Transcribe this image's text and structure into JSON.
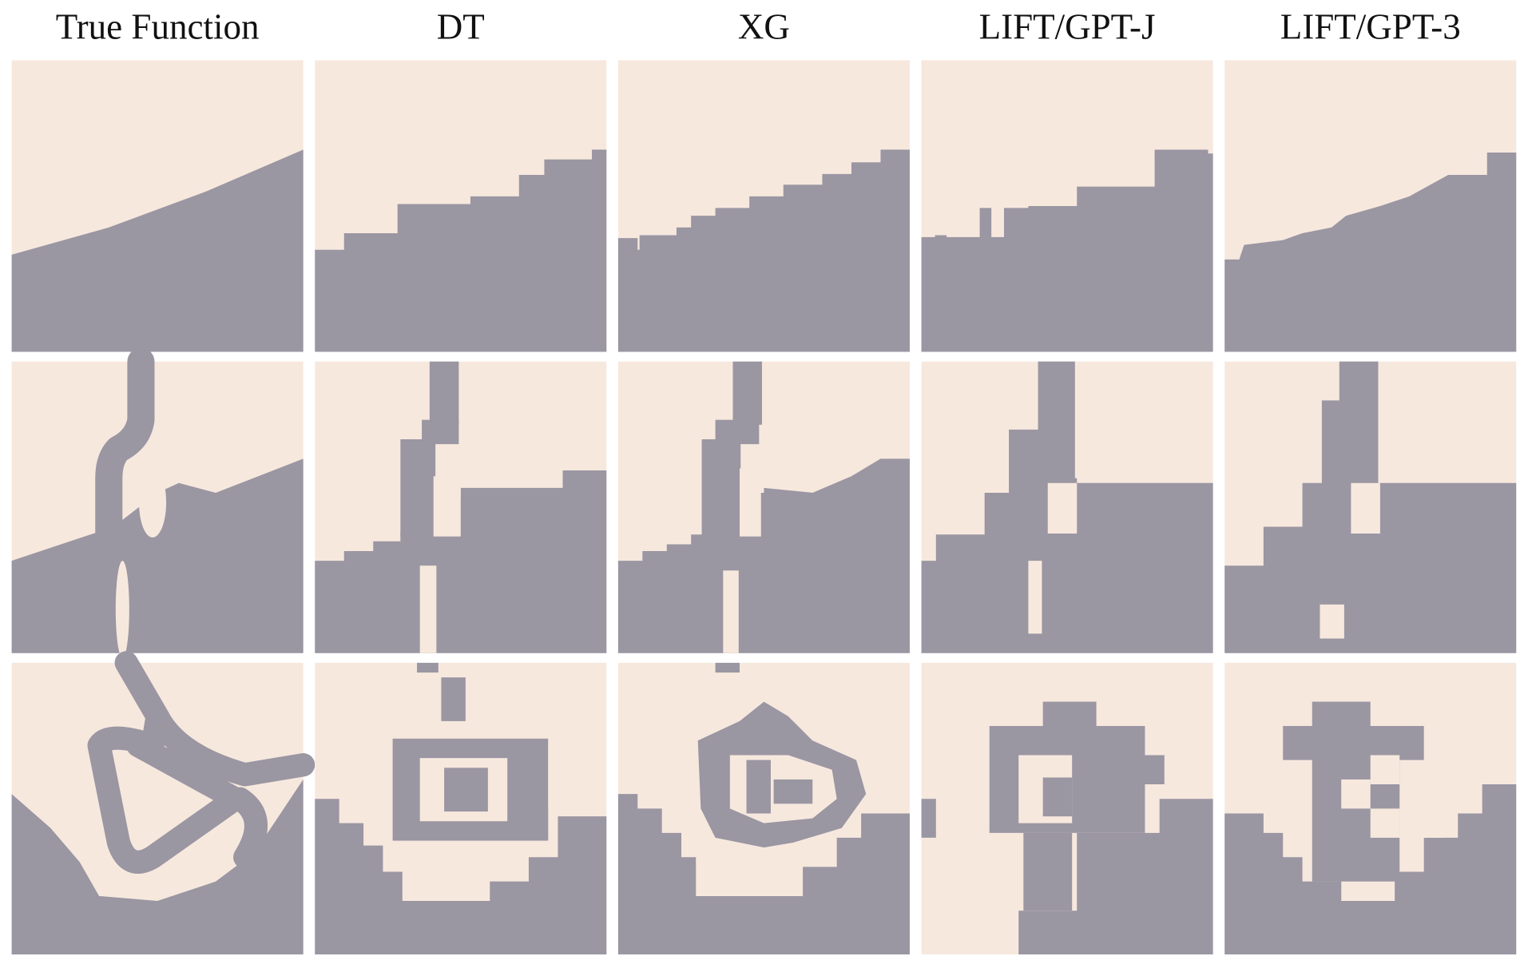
{
  "columns": [
    "True Function",
    "DT",
    "XG",
    "LIFT/GPT-J",
    "LIFT/GPT-3"
  ]
}
